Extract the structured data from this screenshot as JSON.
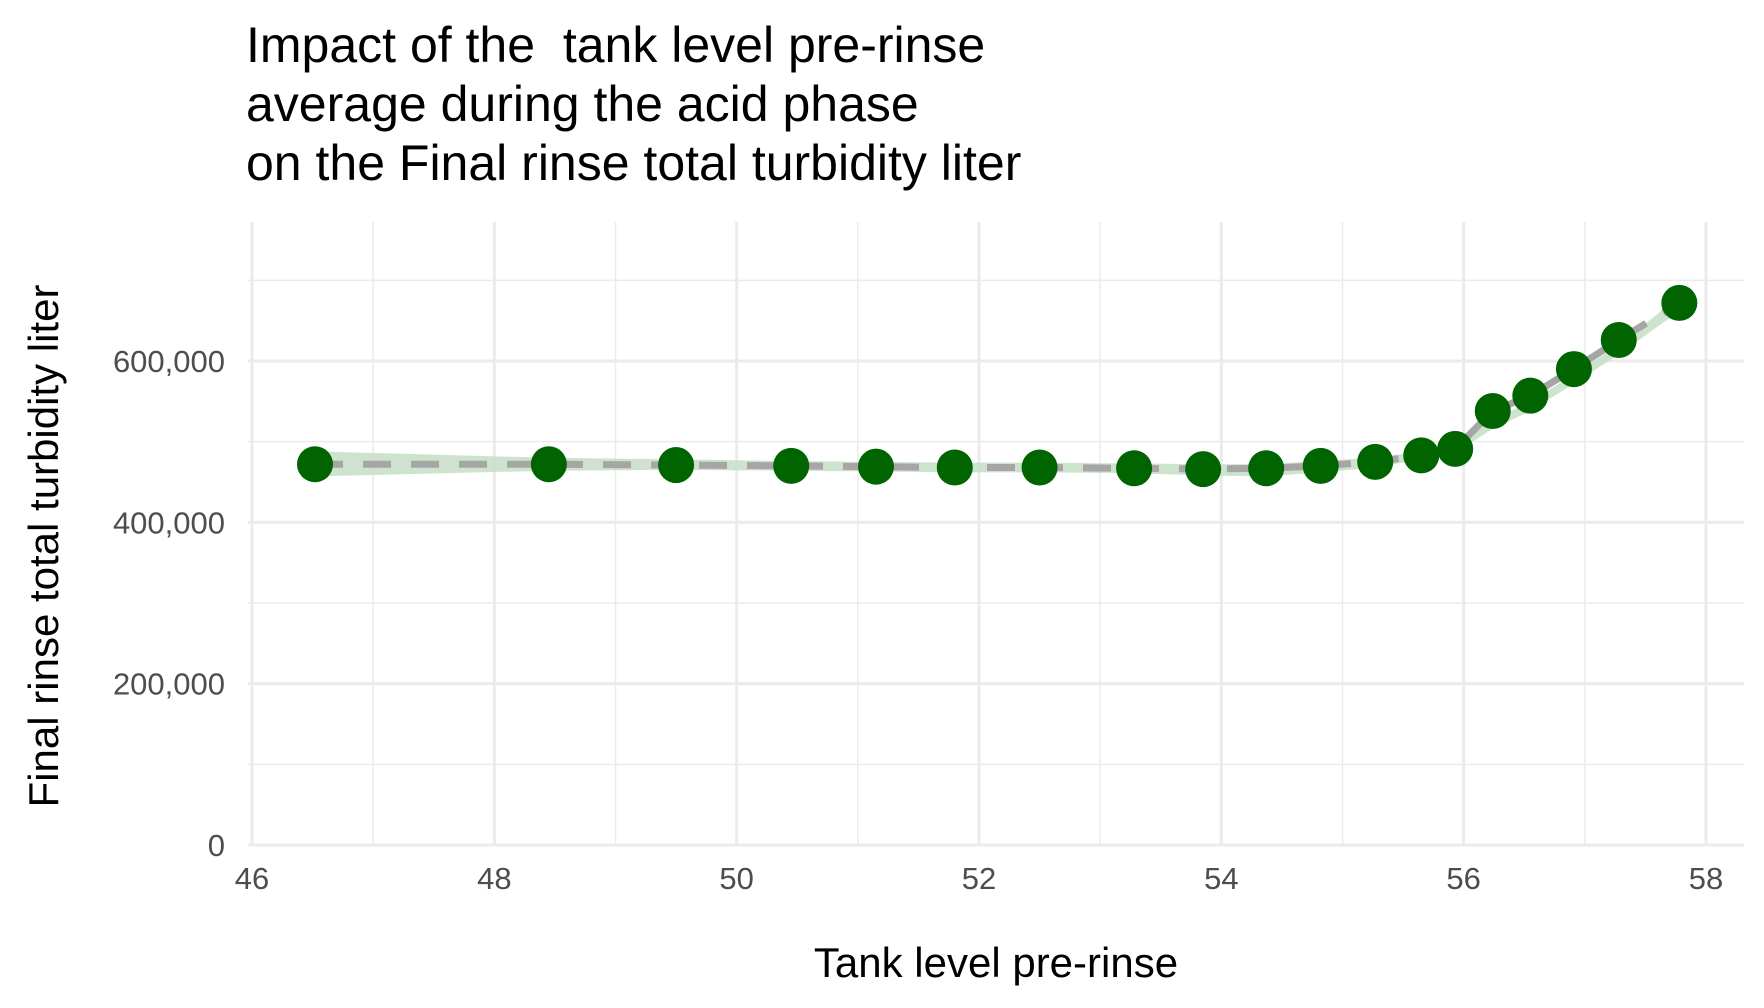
{
  "chart_data": {
    "type": "line",
    "title_lines": [
      "Impact of the  tank level pre-rinse",
      "average during the acid phase",
      "on the Final rinse total turbidity liter"
    ],
    "xlabel": "Tank level pre-rinse",
    "ylabel": "Final rinse total turbidity liter",
    "xlim": [
      46,
      58
    ],
    "ylim": [
      0,
      700000
    ],
    "x_ticks": [
      46,
      48,
      50,
      52,
      54,
      56,
      58
    ],
    "y_ticks": [
      0,
      200000,
      400000,
      600000
    ],
    "y_tick_labels": [
      "0",
      "200,000",
      "400,000",
      "600,000"
    ],
    "grid": true,
    "colors": {
      "points": "#006400",
      "line": "#a6a6a6",
      "band": "#c8e0c8",
      "grid": "#ebebeb"
    },
    "series": [
      {
        "x": [
          46.52,
          48.45,
          49.5,
          50.45,
          51.15,
          51.8,
          52.5,
          53.28,
          53.85,
          54.37,
          54.82,
          55.27,
          55.65,
          55.93,
          56.24,
          56.55,
          56.91,
          57.28,
          57.78
        ],
        "y": [
          472000,
          472000,
          471000,
          470000,
          469000,
          468000,
          468000,
          467000,
          466000,
          467000,
          470000,
          475000,
          483000,
          491000,
          538000,
          557000,
          590000,
          626000,
          672000
        ],
        "band_upper": [
          488000,
          480000,
          478000,
          476000,
          475000,
          474000,
          474000,
          473000,
          472000,
          472000,
          476000,
          480000,
          488000,
          498000,
          528000,
          549000,
          584000,
          620000,
          680000
        ],
        "band_lower": [
          457000,
          464000,
          465000,
          464000,
          463000,
          462000,
          462000,
          461000,
          458000,
          457000,
          462000,
          468000,
          478000,
          486000,
          516000,
          538000,
          572000,
          608000,
          662000
        ]
      }
    ]
  }
}
